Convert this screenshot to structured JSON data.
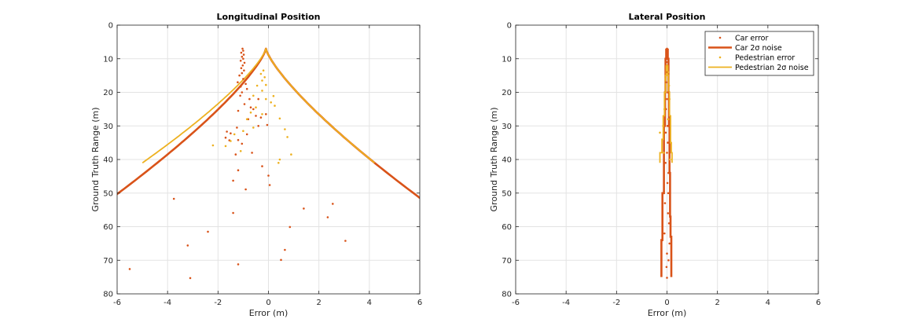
{
  "colors": {
    "car": "#D95319",
    "pedestrian": "#EDB120",
    "grid": "#e3e3e3",
    "axis": "#262626"
  },
  "chart_data": [
    {
      "type": "scatter",
      "title": "Longitudinal Position",
      "xlabel": "Error (m)",
      "ylabel": "Ground Truth Range (m)",
      "xlim": [
        -6,
        6
      ],
      "ylim": [
        0,
        80
      ],
      "y_reversed": true,
      "grid": true,
      "xticks": [
        "-6",
        "-4",
        "-2",
        "0",
        "2",
        "4",
        "6"
      ],
      "yticks": [
        "0",
        "10",
        "20",
        "30",
        "40",
        "50",
        "60",
        "70",
        "80"
      ],
      "series": [
        {
          "kind": "points",
          "series_class": "car-error",
          "color": "#D95319",
          "points": [
            [
              -1.03,
              7
            ],
            [
              -1.0,
              7.6
            ],
            [
              -1.08,
              8.2
            ],
            [
              -0.98,
              8.8
            ],
            [
              -1.05,
              9.4
            ],
            [
              -1.0,
              10
            ],
            [
              -1.1,
              10.6
            ],
            [
              -0.95,
              11.2
            ],
            [
              -1.02,
              12
            ],
            [
              -1.08,
              12.8
            ],
            [
              -0.97,
              13.5
            ],
            [
              -1.05,
              14.3
            ],
            [
              -1.15,
              15
            ],
            [
              -1.0,
              16
            ],
            [
              -1.22,
              17
            ],
            [
              -0.9,
              17.5
            ],
            [
              -1.1,
              18.3
            ],
            [
              -0.85,
              19
            ],
            [
              -1.05,
              20
            ],
            [
              -1.12,
              21
            ],
            [
              -0.75,
              22
            ],
            [
              -0.95,
              23.5
            ],
            [
              -0.4,
              22
            ],
            [
              -0.7,
              24.5
            ],
            [
              -0.6,
              25
            ],
            [
              -0.1,
              26.5
            ],
            [
              -1.2,
              25.5
            ],
            [
              -0.5,
              27
            ],
            [
              -0.3,
              27.5
            ],
            [
              -0.05,
              29.7
            ],
            [
              -0.8,
              28
            ],
            [
              -0.4,
              30
            ],
            [
              -1.65,
              31.7
            ],
            [
              -1.5,
              32.2
            ],
            [
              -1.25,
              30.5
            ],
            [
              -0.85,
              32.5
            ],
            [
              -1.7,
              33.5
            ],
            [
              -1.55,
              34.3
            ],
            [
              -1.2,
              34.2
            ],
            [
              -1.05,
              35.3
            ],
            [
              -0.65,
              38
            ],
            [
              -1.3,
              38.5
            ],
            [
              -1.2,
              43.2
            ],
            [
              -0.25,
              42
            ],
            [
              0,
              44.8
            ],
            [
              -1.4,
              46.3
            ],
            [
              -0.9,
              48.9
            ],
            [
              0.05,
              47.6
            ],
            [
              -3.75,
              51.7
            ],
            [
              1.4,
              54.6
            ],
            [
              2.55,
              53.2
            ],
            [
              -1.4,
              55.9
            ],
            [
              2.35,
              57.2
            ],
            [
              0.85,
              60.1
            ],
            [
              -2.4,
              61.5
            ],
            [
              3.05,
              64.2
            ],
            [
              -3.2,
              65.6
            ],
            [
              0.65,
              66.9
            ],
            [
              0.5,
              69.9
            ],
            [
              -1.2,
              71.2
            ],
            [
              -5.5,
              72.6
            ],
            [
              -3.1,
              75.3
            ]
          ]
        },
        {
          "kind": "points",
          "series_class": "pedestrian-error",
          "color": "#EDB120",
          "points": [
            [
              -0.2,
              13.5
            ],
            [
              -0.3,
              14.5
            ],
            [
              -0.15,
              15.5
            ],
            [
              -0.25,
              16.5
            ],
            [
              -0.45,
              18
            ],
            [
              -0.1,
              17.8
            ],
            [
              -0.25,
              19.5
            ],
            [
              -0.6,
              21
            ],
            [
              0.2,
              21.1
            ],
            [
              -0.1,
              22
            ],
            [
              0.1,
              23
            ],
            [
              0.25,
              24
            ],
            [
              -0.5,
              24.5
            ],
            [
              -0.7,
              26
            ],
            [
              -0.25,
              26.5
            ],
            [
              -0.85,
              28
            ],
            [
              0.45,
              27.8
            ],
            [
              0.65,
              31
            ],
            [
              -0.6,
              30.5
            ],
            [
              -1.0,
              31.5
            ],
            [
              -1.35,
              32.5
            ],
            [
              -1.5,
              34.5
            ],
            [
              0.75,
              33.3
            ],
            [
              -2.2,
              35.8
            ],
            [
              -1.7,
              36
            ],
            [
              -1.1,
              37.5
            ],
            [
              0.9,
              38.5
            ],
            [
              0.45,
              40
            ],
            [
              0.4,
              41
            ]
          ]
        },
        {
          "kind": "envelope",
          "series_class": "car-noise",
          "color": "#D95319",
          "width": 2.6,
          "y_start": 7,
          "y_end": 75,
          "a_left": 0.044,
          "a_right": 0.044,
          "x_center": -0.1,
          "power": 1.3
        },
        {
          "kind": "envelope",
          "series_class": "pedestrian-noise",
          "color": "#EDB120",
          "width": 1.8,
          "y_start": 7,
          "y_end": 41,
          "a_left": 0.05,
          "a_right": 0.044,
          "x_center": -0.1,
          "power": 1.3
        }
      ]
    },
    {
      "type": "scatter",
      "title": "Lateral Position",
      "xlabel": "Error (m)",
      "ylabel": "Ground Truth Range (m)",
      "xlim": [
        -6,
        6
      ],
      "ylim": [
        0,
        80
      ],
      "y_reversed": true,
      "grid": true,
      "xticks": [
        "-6",
        "-4",
        "-2",
        "0",
        "2",
        "4",
        "6"
      ],
      "yticks": [
        "0",
        "10",
        "20",
        "30",
        "40",
        "50",
        "60",
        "70",
        "80"
      ],
      "legend_placement": "top-right",
      "legend": [
        {
          "label": "Car error",
          "style": "point",
          "color": "#D95319"
        },
        {
          "label": "Car 2σ noise",
          "style": "thick-line",
          "color": "#D95319"
        },
        {
          "label": "Pedestrian error",
          "style": "point",
          "color": "#EDB120"
        },
        {
          "label": "Pedestrian 2σ noise",
          "style": "line",
          "color": "#EDB120"
        }
      ],
      "series": [
        {
          "kind": "points",
          "series_class": "car-error",
          "color": "#D95319",
          "points": [
            [
              0.0,
              7
            ],
            [
              0.02,
              9
            ],
            [
              -0.02,
              11
            ],
            [
              0.01,
              14
            ],
            [
              -0.03,
              17
            ],
            [
              0.03,
              20
            ],
            [
              0.0,
              22
            ],
            [
              -0.04,
              25
            ],
            [
              0.05,
              28
            ],
            [
              0.02,
              30
            ],
            [
              -0.05,
              32
            ],
            [
              0.03,
              35
            ],
            [
              0.0,
              38
            ],
            [
              -0.06,
              41
            ],
            [
              0.06,
              44
            ],
            [
              0.02,
              47
            ],
            [
              0.05,
              50
            ],
            [
              -0.08,
              53
            ],
            [
              0.04,
              56
            ],
            [
              0.08,
              59
            ],
            [
              -0.1,
              62
            ],
            [
              0.1,
              65
            ],
            [
              0.0,
              68
            ],
            [
              0.06,
              70
            ],
            [
              -0.02,
              72
            ],
            [
              0.0,
              75.2
            ]
          ]
        },
        {
          "kind": "points",
          "series_class": "pedestrian-error",
          "color": "#EDB120",
          "points": [
            [
              0.0,
              12
            ],
            [
              0.05,
              14
            ],
            [
              -0.05,
              16
            ],
            [
              0.08,
              18
            ],
            [
              -0.08,
              20
            ],
            [
              0.1,
              22
            ],
            [
              -0.1,
              25
            ],
            [
              0.05,
              28
            ],
            [
              -0.15,
              30
            ],
            [
              -0.28,
              32
            ],
            [
              0.15,
              35
            ],
            [
              -0.12,
              38
            ],
            [
              0.12,
              40
            ]
          ]
        },
        {
          "kind": "step",
          "series_class": "car-noise",
          "color": "#D95319",
          "width": 2.6,
          "right": [
            [
              7,
              0.03
            ],
            [
              10,
              0.06
            ],
            [
              20,
              0.08
            ],
            [
              30,
              0.1
            ],
            [
              44,
              0.12
            ],
            [
              57,
              0.14
            ],
            [
              63,
              0.17
            ],
            [
              75,
              0.17
            ]
          ],
          "left": [
            [
              7,
              -0.03
            ],
            [
              10,
              -0.06
            ],
            [
              20,
              -0.08
            ],
            [
              30,
              -0.12
            ],
            [
              50,
              -0.18
            ],
            [
              64,
              -0.22
            ],
            [
              75,
              -0.22
            ]
          ]
        },
        {
          "kind": "step",
          "series_class": "pedestrian-noise",
          "color": "#EDB120",
          "width": 1.8,
          "right": [
            [
              12,
              0.03
            ],
            [
              15,
              0.06
            ],
            [
              20,
              0.1
            ],
            [
              27,
              0.14
            ],
            [
              35,
              0.17
            ],
            [
              38,
              0.2
            ],
            [
              41,
              0.2
            ]
          ],
          "left": [
            [
              12,
              -0.03
            ],
            [
              15,
              -0.06
            ],
            [
              20,
              -0.1
            ],
            [
              27,
              -0.15
            ],
            [
              34,
              -0.2
            ],
            [
              38,
              -0.28
            ],
            [
              41,
              -0.28
            ]
          ]
        }
      ]
    }
  ]
}
